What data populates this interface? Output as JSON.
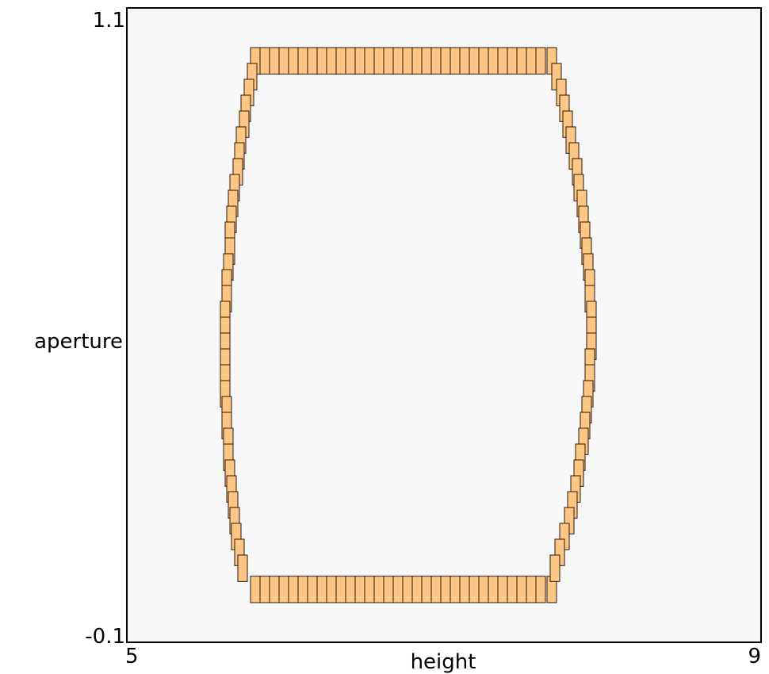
{
  "chart_data": {
    "type": "scatter",
    "marker": "rectangle",
    "title": "",
    "xlabel": "height",
    "ylabel": "aperture",
    "xlim": [
      5,
      9
    ],
    "ylim": [
      -0.1,
      1.1
    ],
    "x_tick_labels": [
      "5",
      "9"
    ],
    "y_tick_labels": [
      "1.1",
      "-0.1"
    ],
    "grid": false,
    "colors": {
      "fill": "#fec685",
      "edge": "#2a1a0a",
      "background": "#f7f7f7"
    },
    "marker_size": {
      "width": 0.06,
      "height": 0.05
    },
    "shape": {
      "bottom_left": [
        5.81,
        0.0
      ],
      "bottom_right": [
        7.68,
        0.0
      ],
      "top_left": [
        5.81,
        1.0
      ],
      "top_right": [
        7.68,
        1.0
      ],
      "left_extreme": [
        5.62,
        0.5
      ],
      "right_extreme": [
        7.93,
        0.5
      ]
    },
    "series": [
      {
        "values_note": "",
        "points": [
          [
            5.81,
            1.0
          ],
          [
            5.87,
            1.0
          ],
          [
            5.93,
            1.0
          ],
          [
            5.99,
            1.0
          ],
          [
            6.05,
            1.0
          ],
          [
            6.11,
            1.0
          ],
          [
            6.17,
            1.0
          ],
          [
            6.23,
            1.0
          ],
          [
            6.29,
            1.0
          ],
          [
            6.35,
            1.0
          ],
          [
            6.41,
            1.0
          ],
          [
            6.47,
            1.0
          ],
          [
            6.53,
            1.0
          ],
          [
            6.59,
            1.0
          ],
          [
            6.65,
            1.0
          ],
          [
            6.71,
            1.0
          ],
          [
            6.77,
            1.0
          ],
          [
            6.83,
            1.0
          ],
          [
            6.89,
            1.0
          ],
          [
            6.95,
            1.0
          ],
          [
            7.01,
            1.0
          ],
          [
            7.07,
            1.0
          ],
          [
            7.13,
            1.0
          ],
          [
            7.19,
            1.0
          ],
          [
            7.25,
            1.0
          ],
          [
            7.31,
            1.0
          ],
          [
            7.37,
            1.0
          ],
          [
            7.43,
            1.0
          ],
          [
            7.49,
            1.0
          ],
          [
            7.55,
            1.0
          ],
          [
            7.61,
            1.0
          ],
          [
            7.68,
            1.0
          ],
          [
            5.81,
            0.0
          ],
          [
            5.87,
            0.0
          ],
          [
            5.93,
            0.0
          ],
          [
            5.99,
            0.0
          ],
          [
            6.05,
            0.0
          ],
          [
            6.11,
            0.0
          ],
          [
            6.17,
            0.0
          ],
          [
            6.23,
            0.0
          ],
          [
            6.29,
            0.0
          ],
          [
            6.35,
            0.0
          ],
          [
            6.41,
            0.0
          ],
          [
            6.47,
            0.0
          ],
          [
            6.53,
            0.0
          ],
          [
            6.59,
            0.0
          ],
          [
            6.65,
            0.0
          ],
          [
            6.71,
            0.0
          ],
          [
            6.77,
            0.0
          ],
          [
            6.83,
            0.0
          ],
          [
            6.89,
            0.0
          ],
          [
            6.95,
            0.0
          ],
          [
            7.01,
            0.0
          ],
          [
            7.07,
            0.0
          ],
          [
            7.13,
            0.0
          ],
          [
            7.19,
            0.0
          ],
          [
            7.25,
            0.0
          ],
          [
            7.31,
            0.0
          ],
          [
            7.37,
            0.0
          ],
          [
            7.43,
            0.0
          ],
          [
            7.49,
            0.0
          ],
          [
            7.55,
            0.0
          ],
          [
            7.61,
            0.0
          ],
          [
            7.68,
            0.0
          ],
          [
            5.79,
            0.97
          ],
          [
            5.77,
            0.94
          ],
          [
            5.75,
            0.91
          ],
          [
            5.74,
            0.88
          ],
          [
            5.72,
            0.85
          ],
          [
            5.71,
            0.82
          ],
          [
            5.7,
            0.79
          ],
          [
            5.68,
            0.76
          ],
          [
            5.67,
            0.73
          ],
          [
            5.66,
            0.7
          ],
          [
            5.65,
            0.67
          ],
          [
            5.65,
            0.64
          ],
          [
            5.64,
            0.61
          ],
          [
            5.63,
            0.58
          ],
          [
            5.63,
            0.55
          ],
          [
            5.62,
            0.52
          ],
          [
            5.62,
            0.49
          ],
          [
            5.62,
            0.46
          ],
          [
            5.62,
            0.43
          ],
          [
            5.62,
            0.4
          ],
          [
            5.62,
            0.37
          ],
          [
            5.63,
            0.34
          ],
          [
            5.63,
            0.31
          ],
          [
            5.64,
            0.28
          ],
          [
            5.64,
            0.25
          ],
          [
            5.65,
            0.22
          ],
          [
            5.66,
            0.19
          ],
          [
            5.67,
            0.16
          ],
          [
            5.68,
            0.13
          ],
          [
            5.69,
            0.1
          ],
          [
            5.71,
            0.07
          ],
          [
            5.73,
            0.04
          ],
          [
            7.71,
            0.97
          ],
          [
            7.74,
            0.94
          ],
          [
            7.76,
            0.91
          ],
          [
            7.78,
            0.88
          ],
          [
            7.8,
            0.85
          ],
          [
            7.82,
            0.82
          ],
          [
            7.84,
            0.79
          ],
          [
            7.85,
            0.76
          ],
          [
            7.87,
            0.73
          ],
          [
            7.88,
            0.7
          ],
          [
            7.89,
            0.67
          ],
          [
            7.9,
            0.64
          ],
          [
            7.91,
            0.61
          ],
          [
            7.92,
            0.58
          ],
          [
            7.92,
            0.55
          ],
          [
            7.93,
            0.52
          ],
          [
            7.93,
            0.49
          ],
          [
            7.93,
            0.46
          ],
          [
            7.92,
            0.43
          ],
          [
            7.92,
            0.4
          ],
          [
            7.91,
            0.37
          ],
          [
            7.9,
            0.34
          ],
          [
            7.89,
            0.31
          ],
          [
            7.88,
            0.28
          ],
          [
            7.86,
            0.25
          ],
          [
            7.85,
            0.22
          ],
          [
            7.83,
            0.19
          ],
          [
            7.81,
            0.16
          ],
          [
            7.79,
            0.13
          ],
          [
            7.76,
            0.1
          ],
          [
            7.73,
            0.07
          ],
          [
            7.7,
            0.04
          ]
        ]
      }
    ]
  }
}
